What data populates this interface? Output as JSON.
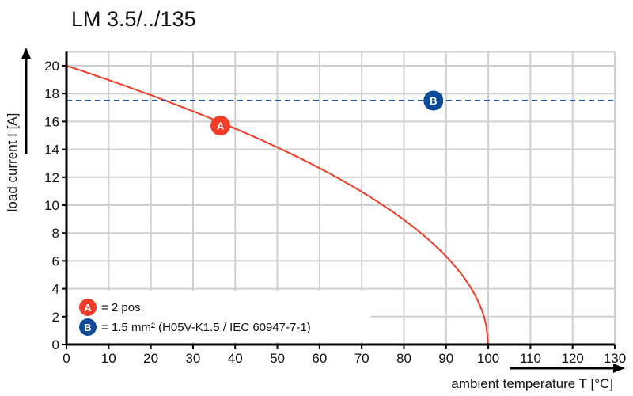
{
  "chart_data": {
    "type": "line",
    "title": "LM 3.5/../135",
    "xlabel": "ambient temperature T [°C]",
    "ylabel": "load current I [A]",
    "xlim": [
      0,
      130
    ],
    "ylim": [
      0,
      21
    ],
    "xticks": [
      0,
      10,
      20,
      30,
      40,
      50,
      60,
      70,
      80,
      90,
      100,
      110,
      120,
      130
    ],
    "yticks": [
      0,
      2,
      4,
      6,
      8,
      10,
      12,
      14,
      16,
      18,
      20
    ],
    "grid": true,
    "series": [
      {
        "marker": "A",
        "style": "solid",
        "color": "#f03c28",
        "x": [
          0,
          10,
          20,
          30,
          40,
          50,
          60,
          70,
          80,
          90,
          95,
          98,
          100
        ],
        "y": [
          20,
          18.97,
          17.89,
          16.73,
          15.49,
          14.14,
          12.65,
          10.95,
          8.94,
          6.32,
          4.47,
          2.83,
          0
        ]
      },
      {
        "marker": "B",
        "style": "dashed",
        "color": "#1a4fa0",
        "x": [
          0,
          130
        ],
        "y": [
          17.5,
          17.5
        ]
      }
    ],
    "markers": [
      {
        "label": "A",
        "x": 36.5,
        "y": 15.7,
        "color": "#f03c28"
      },
      {
        "label": "B",
        "x": 87,
        "y": 17.5,
        "color": "#0d4a9a"
      }
    ],
    "legend": {
      "placement": "bottom-left",
      "entries": [
        {
          "badge": "A",
          "text": "= 2 pos.",
          "color": "#f03c28"
        },
        {
          "badge": "B",
          "text": "= 1.5 mm² (H05V-K1.5 / IEC 60947-7-1)",
          "color": "#0d4a9a"
        }
      ]
    }
  }
}
